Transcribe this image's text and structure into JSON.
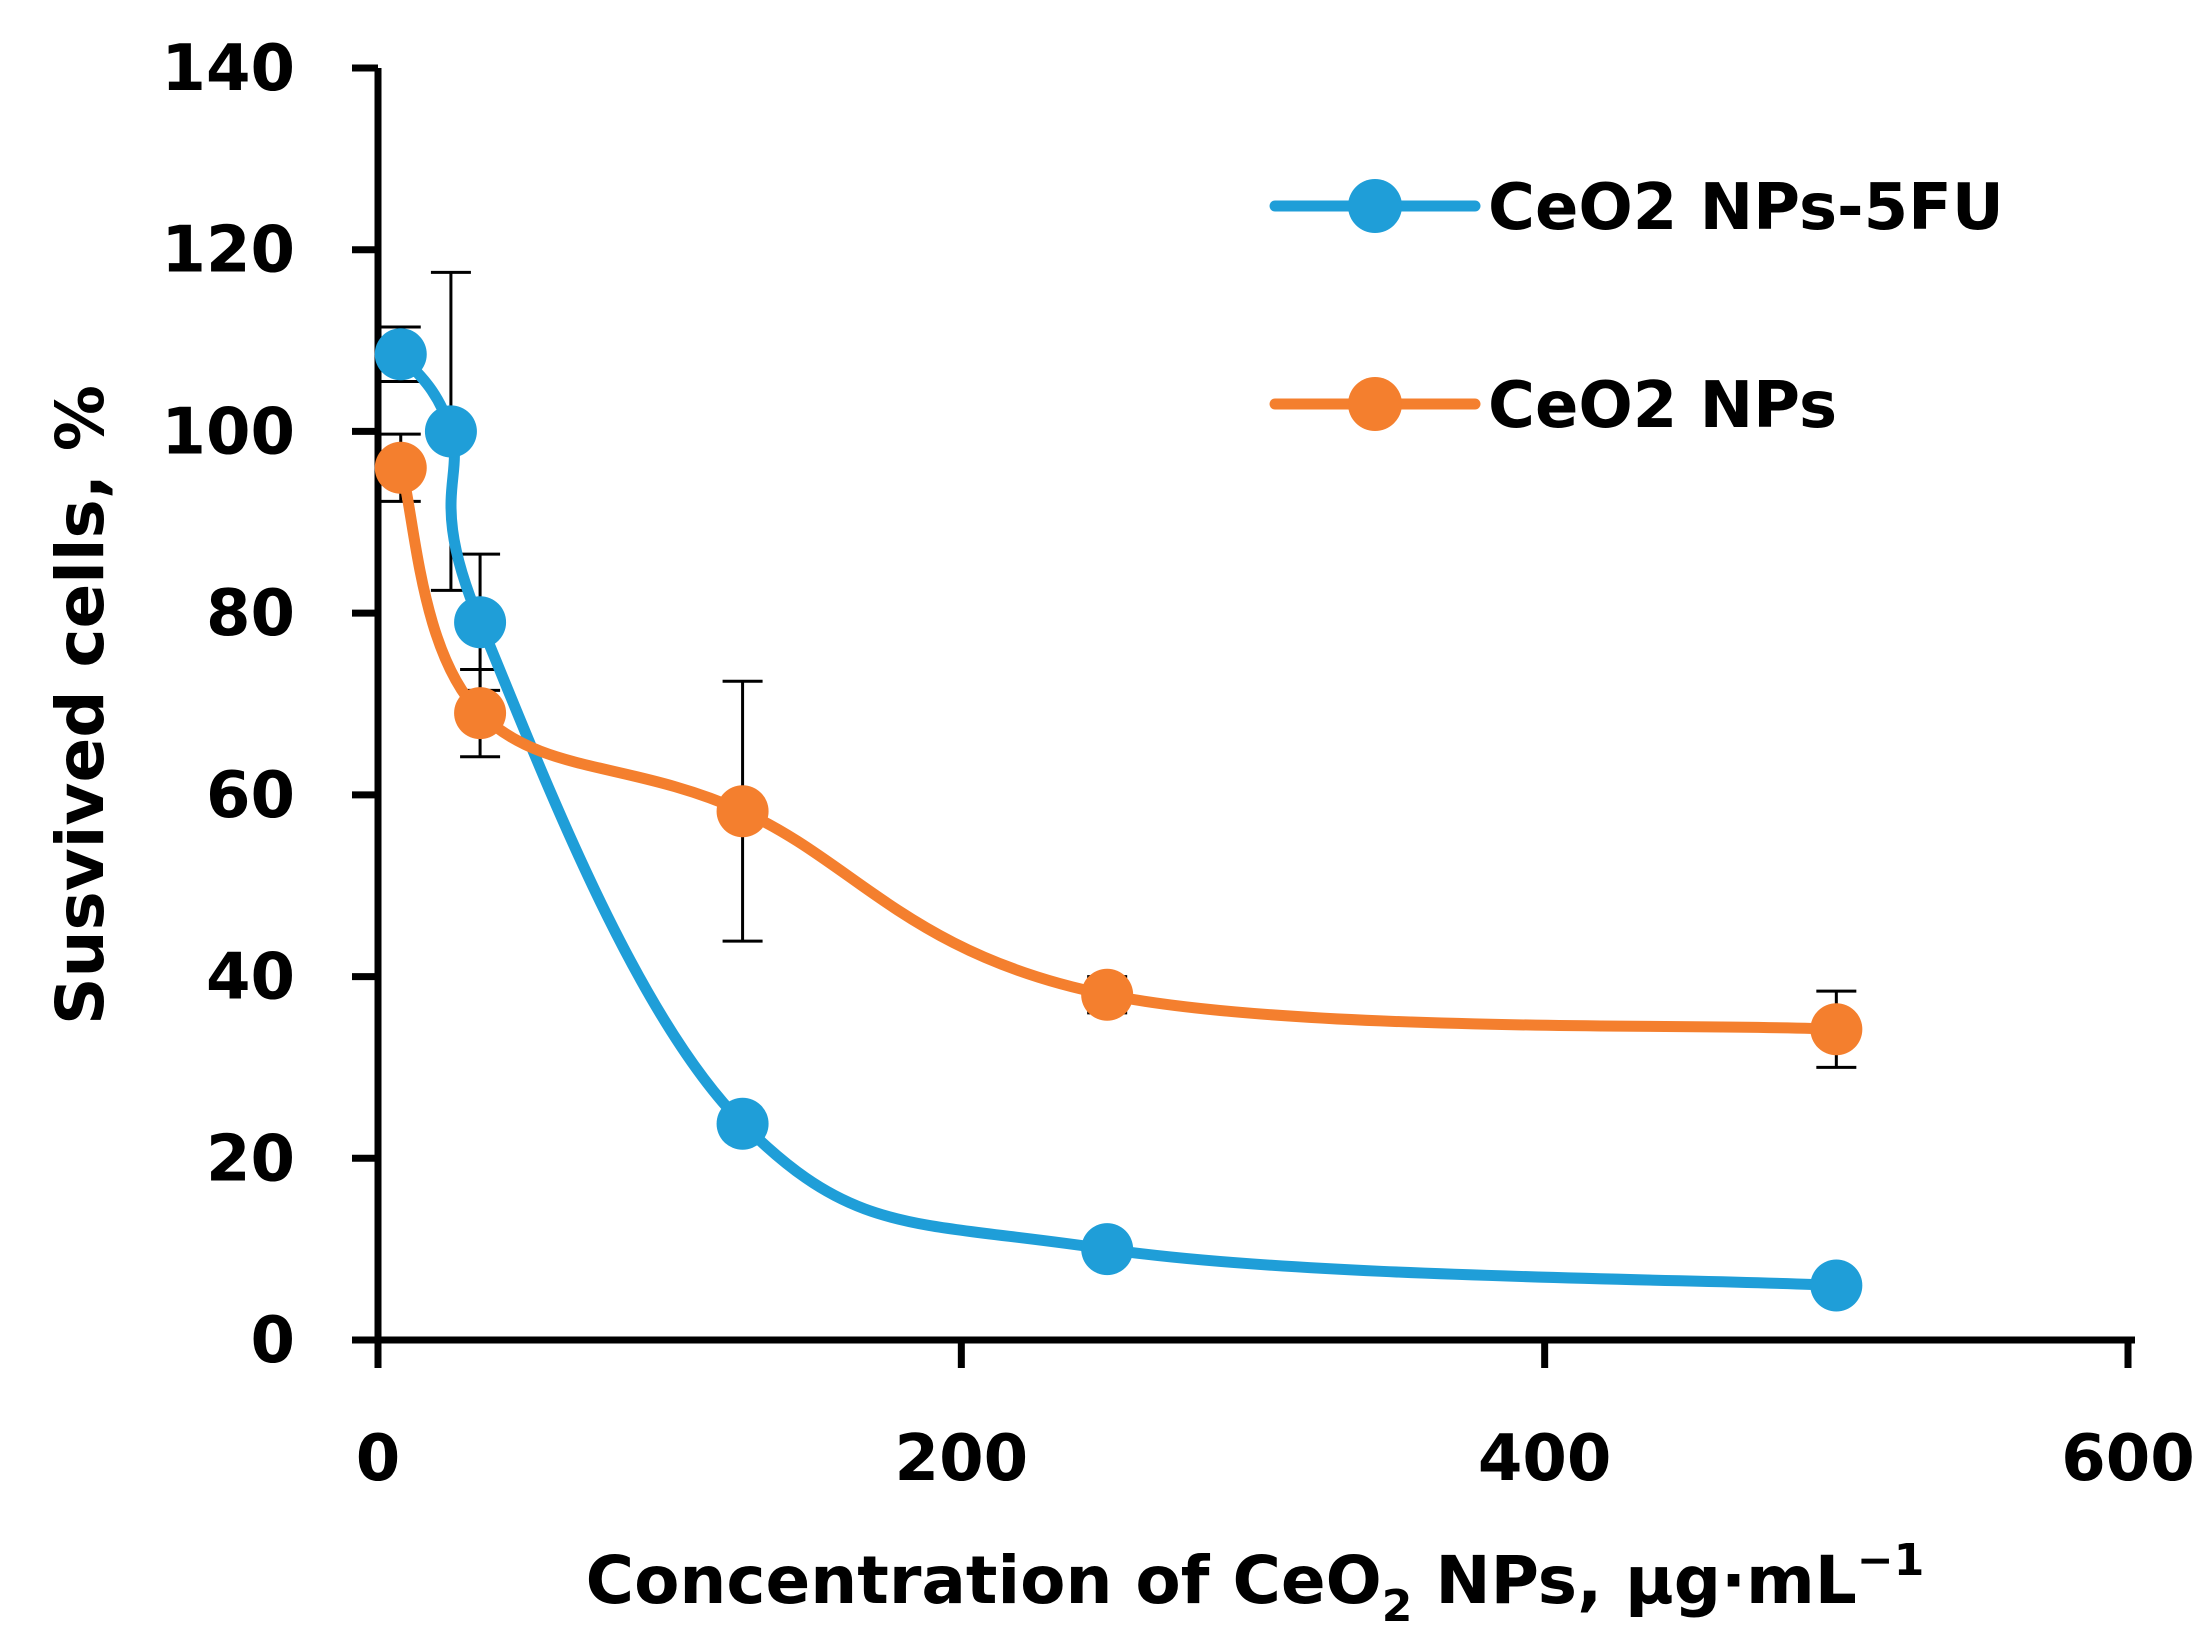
{
  "chart_data": {
    "type": "line",
    "title": "",
    "xlabel": {
      "main": "Concentration of CeO",
      "subscript": "2",
      "rest": " NPs, µg·mL",
      "superscript": "−1"
    },
    "ylabel": "Susvived cells, %",
    "xlim": [
      0,
      600
    ],
    "ylim": [
      0,
      140
    ],
    "x_ticks": [
      "0",
      "200",
      "400",
      "600"
    ],
    "y_ticks": [
      "0",
      "20",
      "40",
      "60",
      "80",
      "100",
      "120",
      "140"
    ],
    "legend_position": "top-right",
    "series": [
      {
        "name": "CeO2 NPs-5FU",
        "color": "#1f9ed8",
        "x": [
          7.8,
          25,
          35,
          125,
          250,
          500
        ],
        "y": [
          108.5,
          100,
          79,
          23.8,
          10,
          6
        ],
        "error": [
          3,
          17.5,
          7.5,
          0,
          0,
          0
        ]
      },
      {
        "name": "CeO2 NPs",
        "color": "#f47f2e",
        "x": [
          7.8,
          35,
          125,
          250,
          500
        ],
        "y": [
          96,
          69,
          58.2,
          38,
          34.2
        ],
        "error": [
          3.7,
          4.8,
          14.3,
          2,
          4.2
        ]
      }
    ]
  }
}
